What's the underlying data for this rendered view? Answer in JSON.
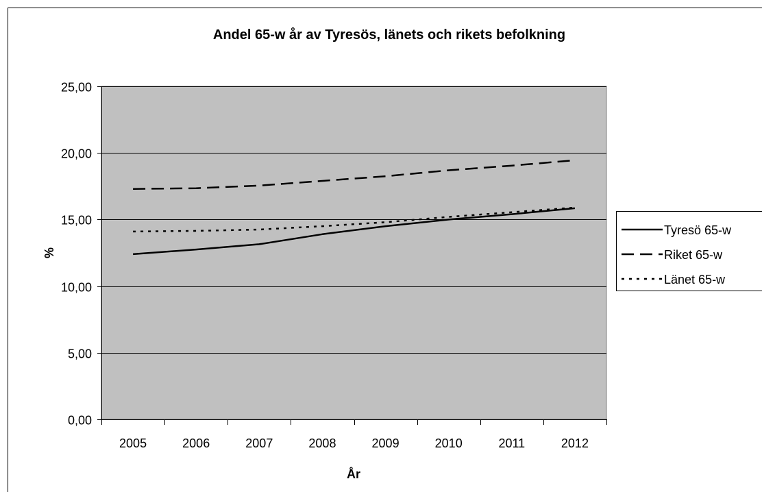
{
  "chart_data": {
    "type": "line",
    "title": "Andel 65-w år av Tyresös, länets och rikets befolkning",
    "xlabel": "År",
    "ylabel": "%",
    "categories": [
      "2005",
      "2006",
      "2007",
      "2008",
      "2009",
      "2010",
      "2011",
      "2012"
    ],
    "ylim": [
      0,
      25
    ],
    "yticks": [
      "0,00",
      "5,00",
      "10,00",
      "15,00",
      "20,00",
      "25,00"
    ],
    "grid": true,
    "legend_position": "right",
    "series": [
      {
        "name": "Tyresö 65-w",
        "style": "solid",
        "values": [
          12.4,
          12.75,
          13.15,
          13.9,
          14.5,
          15.0,
          15.4,
          15.85
        ]
      },
      {
        "name": "Riket 65-w",
        "style": "dashed",
        "values": [
          17.3,
          17.35,
          17.55,
          17.9,
          18.25,
          18.7,
          19.05,
          19.45
        ]
      },
      {
        "name": "Länet 65-w",
        "style": "dotted",
        "values": [
          14.1,
          14.15,
          14.25,
          14.5,
          14.8,
          15.2,
          15.55,
          15.9
        ]
      }
    ],
    "colors": {
      "plot_background": "#c0c0c0",
      "line": "#000000",
      "grid": "#000000"
    }
  }
}
